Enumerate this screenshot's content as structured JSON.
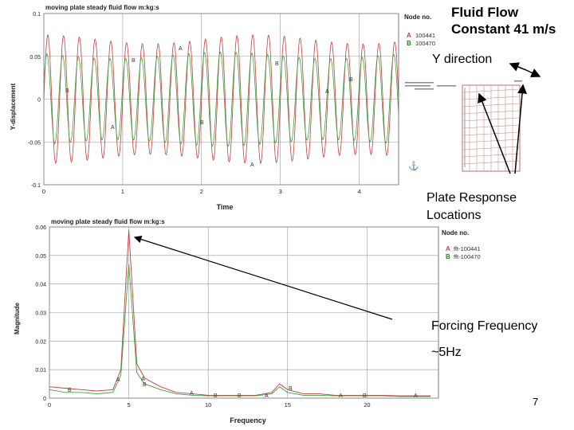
{
  "slide": {
    "title_line1": "Fluid Flow",
    "title_line2": "Constant 41 m/s",
    "y_direction": "Y direction",
    "plate_response_line1": "Plate Response",
    "plate_response_line2": "Locations",
    "forcing_frequency": "Forcing Frequency",
    "hz_label": "~5Hz",
    "page_number": "7"
  },
  "colors": {
    "series_A": "#c04040",
    "series_B": "#40a040",
    "grid": "#9a9a9a"
  },
  "chart_data": [
    {
      "type": "line",
      "title": "moving plate steady fluid flow m:kg:s",
      "xlabel": "Time",
      "ylabel": "Y-displacement",
      "xlim": [
        0,
        4.5
      ],
      "ylim": [
        -0.1,
        0.1
      ],
      "x_ticks": [
        0,
        1,
        2,
        3,
        4
      ],
      "x_tick_labels": [
        "0",
        "1",
        "2",
        "3",
        "4"
      ],
      "y_ticks": [
        0.1,
        0.05,
        0,
        -0.05,
        -0.1
      ],
      "y_tick_labels": [
        "0.1",
        "0.05",
        "0",
        "-0.05",
        "-0.1"
      ],
      "legend_title": "Node no.",
      "series": [
        {
          "name": "A",
          "label": "100441",
          "frequency_hz": 5,
          "amplitude": 0.075
        },
        {
          "name": "B",
          "label": "100470",
          "frequency_hz": 5,
          "amplitude": 0.055
        }
      ]
    },
    {
      "type": "line",
      "title": "moving plate steady fluid flow m:kg:s",
      "xlabel": "Frequency",
      "ylabel": "Magnitude",
      "xlim": [
        0,
        24.5
      ],
      "ylim": [
        0,
        0.06
      ],
      "x_ticks": [
        0,
        5,
        10,
        15,
        20
      ],
      "x_tick_labels": [
        "0",
        "5",
        "10",
        "15",
        "20"
      ],
      "y_ticks": [
        0.06,
        0.05,
        0.04,
        0.03,
        0.02,
        0.01,
        0
      ],
      "y_tick_labels": [
        "0.06",
        "0.05",
        "0.04",
        "0.03",
        "0.02",
        "0.01",
        "0"
      ],
      "legend_title": "Node no.",
      "series": [
        {
          "name": "A",
          "label": "fft-100441",
          "x": [
            0,
            1,
            2,
            3,
            4,
            4.5,
            5,
            5.5,
            6,
            7,
            8,
            9,
            10,
            11,
            12,
            13,
            14,
            14.5,
            15,
            16,
            17,
            18,
            19,
            20,
            21,
            22,
            23,
            24
          ],
          "y": [
            0.004,
            0.0035,
            0.003,
            0.0025,
            0.003,
            0.01,
            0.059,
            0.012,
            0.007,
            0.004,
            0.002,
            0.0015,
            0.001,
            0.001,
            0.001,
            0.001,
            0.002,
            0.005,
            0.003,
            0.0015,
            0.0015,
            0.001,
            0.001,
            0.001,
            0.001,
            0.0008,
            0.0008,
            0.0008
          ]
        },
        {
          "name": "B",
          "label": "fft-100470",
          "x": [
            0,
            1,
            2,
            3,
            4,
            4.5,
            5,
            5.5,
            6,
            7,
            8,
            9,
            10,
            11,
            12,
            13,
            14,
            14.5,
            15,
            16,
            17,
            18,
            19,
            20,
            21,
            22,
            23,
            24
          ],
          "y": [
            0.003,
            0.002,
            0.002,
            0.0015,
            0.002,
            0.008,
            0.047,
            0.009,
            0.005,
            0.003,
            0.0015,
            0.001,
            0.0008,
            0.0008,
            0.0008,
            0.0008,
            0.0015,
            0.004,
            0.002,
            0.001,
            0.001,
            0.0008,
            0.0008,
            0.0008,
            0.0008,
            0.0006,
            0.0006,
            0.0006
          ]
        }
      ]
    }
  ]
}
